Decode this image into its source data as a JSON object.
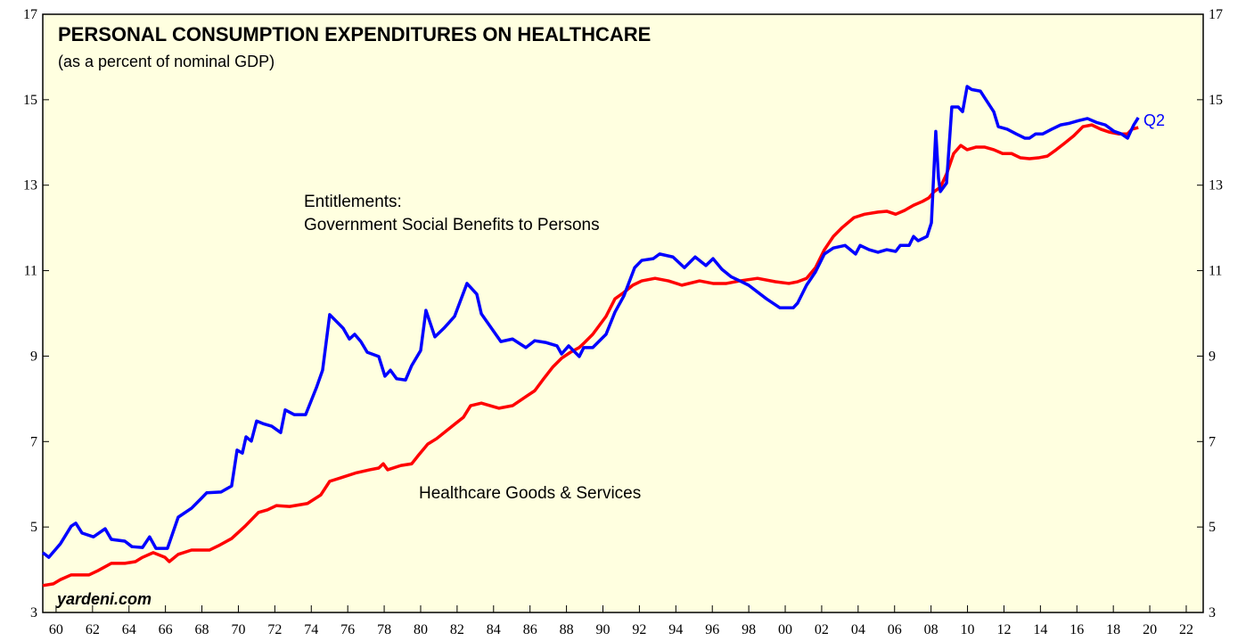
{
  "chart_data": {
    "type": "line",
    "title": "PERSONAL CONSUMPTION EXPENDITURES ON HEALTHCARE",
    "subtitle": "(as a percent of nominal GDP)",
    "annotations": {
      "entitlements": [
        "Entitlements:",
        "Government Social Benefits to Persons"
      ],
      "healthcare": "Healthcare Goods & Services",
      "end_label": "Q2",
      "source": "yardeni.com"
    },
    "xlim": [
      1959.27,
      2022.93
    ],
    "ylim": [
      3,
      17
    ],
    "yticks": [
      3,
      5,
      7,
      9,
      11,
      13,
      15,
      17
    ],
    "xticks": [
      {
        "value": 1960,
        "label": "60"
      },
      {
        "value": 1962,
        "label": "62"
      },
      {
        "value": 1964,
        "label": "64"
      },
      {
        "value": 1966,
        "label": "66"
      },
      {
        "value": 1968,
        "label": "68"
      },
      {
        "value": 1970,
        "label": "70"
      },
      {
        "value": 1972,
        "label": "72"
      },
      {
        "value": 1974,
        "label": "74"
      },
      {
        "value": 1976,
        "label": "76"
      },
      {
        "value": 1978,
        "label": "78"
      },
      {
        "value": 1980,
        "label": "80"
      },
      {
        "value": 1982,
        "label": "82"
      },
      {
        "value": 1984,
        "label": "84"
      },
      {
        "value": 1986,
        "label": "86"
      },
      {
        "value": 1988,
        "label": "88"
      },
      {
        "value": 1990,
        "label": "90"
      },
      {
        "value": 1992,
        "label": "92"
      },
      {
        "value": 1994,
        "label": "94"
      },
      {
        "value": 1996,
        "label": "96"
      },
      {
        "value": 1998,
        "label": "98"
      },
      {
        "value": 2000,
        "label": "00"
      },
      {
        "value": 2002,
        "label": "02"
      },
      {
        "value": 2004,
        "label": "04"
      },
      {
        "value": 2006,
        "label": "06"
      },
      {
        "value": 2008,
        "label": "08"
      },
      {
        "value": 2010,
        "label": "10"
      },
      {
        "value": 2012,
        "label": "12"
      },
      {
        "value": 2014,
        "label": "14"
      },
      {
        "value": 2016,
        "label": "16"
      },
      {
        "value": 2018,
        "label": "18"
      },
      {
        "value": 2020,
        "label": "20"
      },
      {
        "value": 2022,
        "label": "22"
      }
    ],
    "series": [
      {
        "color": "#ff0000",
        "x": [
          1959.27,
          1959.85,
          1960.24,
          1960.83,
          1961.81,
          1962.3,
          1963.03,
          1963.77,
          1964.35,
          1964.74,
          1965.33,
          1965.97,
          1966.21,
          1966.7,
          1967.43,
          1967.92,
          1968.41,
          1968.9,
          1969.63,
          1970.37,
          1971.1,
          1971.59,
          1972.08,
          1972.81,
          1973.79,
          1974.52,
          1975.01,
          1975.75,
          1976.48,
          1977.21,
          1977.7,
          1977.95,
          1978.19,
          1978.92,
          1979.51,
          1979.9,
          1980.39,
          1980.88,
          1981.61,
          1982.35,
          1982.74,
          1983.33,
          1984.3,
          1985.04,
          1985.77,
          1986.26,
          1986.75,
          1987.24,
          1987.73,
          1988.22,
          1988.7,
          1988.95,
          1989.44,
          1990.17,
          1990.66,
          1991.15,
          1991.64,
          1992.13,
          1992.86,
          1993.59,
          1994.33,
          1995.3,
          1996.04,
          1996.77,
          1997.51,
          1998.48,
          1999.46,
          2000.2,
          2000.68,
          2001.17,
          2001.66,
          2002.15,
          2002.64,
          2003.13,
          2003.77,
          2004.35,
          2005.09,
          2005.57,
          2006.06,
          2006.55,
          2007.04,
          2007.53,
          2007.87,
          2008.17,
          2008.51,
          2008.85,
          2009.24,
          2009.63,
          2009.98,
          2010.46,
          2010.95,
          2011.44,
          2011.93,
          2012.42,
          2012.91,
          2013.4,
          2013.89,
          2014.38,
          2014.87,
          2015.35,
          2015.84,
          2016.33,
          2016.82,
          2017.31,
          2017.8,
          2018.29,
          2018.78,
          2019.02,
          2019.37
        ],
        "values": [
          3.63,
          3.67,
          3.77,
          3.88,
          3.88,
          3.98,
          4.15,
          4.15,
          4.19,
          4.29,
          4.4,
          4.29,
          4.19,
          4.36,
          4.46,
          4.46,
          4.46,
          4.56,
          4.73,
          5.02,
          5.34,
          5.4,
          5.5,
          5.48,
          5.55,
          5.75,
          6.07,
          6.17,
          6.27,
          6.34,
          6.38,
          6.48,
          6.34,
          6.44,
          6.48,
          6.69,
          6.94,
          7.07,
          7.32,
          7.57,
          7.84,
          7.9,
          7.78,
          7.84,
          8.05,
          8.19,
          8.47,
          8.74,
          8.95,
          9.09,
          9.2,
          9.3,
          9.51,
          9.93,
          10.34,
          10.49,
          10.66,
          10.76,
          10.82,
          10.76,
          10.66,
          10.76,
          10.7,
          10.7,
          10.76,
          10.82,
          10.74,
          10.7,
          10.74,
          10.82,
          11.07,
          11.49,
          11.8,
          12.01,
          12.24,
          12.32,
          12.37,
          12.39,
          12.32,
          12.41,
          12.53,
          12.62,
          12.7,
          12.85,
          12.95,
          13.26,
          13.74,
          13.93,
          13.83,
          13.89,
          13.89,
          13.83,
          13.74,
          13.74,
          13.64,
          13.62,
          13.64,
          13.68,
          13.83,
          13.99,
          14.16,
          14.37,
          14.41,
          14.31,
          14.24,
          14.2,
          14.2,
          14.31,
          14.35
        ]
      },
      {
        "color": "#0000ff",
        "x": [
          1959.27,
          1959.6,
          1960.24,
          1960.83,
          1961.08,
          1961.42,
          1962.05,
          1962.69,
          1963.03,
          1963.77,
          1964.16,
          1964.74,
          1965.13,
          1965.48,
          1966.11,
          1966.7,
          1967.43,
          1967.92,
          1968.26,
          1969.05,
          1969.63,
          1969.93,
          1970.22,
          1970.42,
          1970.71,
          1971.0,
          1971.35,
          1971.83,
          1972.32,
          1972.57,
          1973.06,
          1973.69,
          1974.28,
          1974.62,
          1975.01,
          1975.75,
          1976.09,
          1976.38,
          1976.72,
          1977.07,
          1977.7,
          1978.04,
          1978.34,
          1978.68,
          1979.17,
          1979.51,
          1980.0,
          1980.29,
          1980.78,
          1981.27,
          1981.86,
          1982.54,
          1983.08,
          1983.33,
          1984.4,
          1985.04,
          1985.77,
          1986.26,
          1986.85,
          1987.48,
          1987.73,
          1988.12,
          1988.7,
          1988.95,
          1989.44,
          1990.17,
          1990.66,
          1991.15,
          1991.74,
          1992.13,
          1992.76,
          1993.11,
          1993.84,
          1994.47,
          1995.06,
          1995.65,
          1996.04,
          1996.53,
          1997.02,
          1997.51,
          1997.99,
          1998.97,
          1999.71,
          2000.44,
          2000.68,
          2001.17,
          2001.66,
          2002.15,
          2002.64,
          2003.28,
          2003.86,
          2004.11,
          2004.6,
          2005.09,
          2005.57,
          2006.06,
          2006.31,
          2006.8,
          2007.04,
          2007.29,
          2007.78,
          2008.02,
          2008.26,
          2008.41,
          2008.51,
          2008.85,
          2009.14,
          2009.49,
          2009.73,
          2009.98,
          2010.22,
          2010.71,
          2010.95,
          2011.44,
          2011.69,
          2012.18,
          2012.67,
          2013.15,
          2013.4,
          2013.74,
          2014.13,
          2014.62,
          2015.11,
          2015.6,
          2016.09,
          2016.58,
          2017.07,
          2017.56,
          2018.04,
          2018.44,
          2018.78,
          2019.12,
          2019.37
        ],
        "values": [
          4.4,
          4.29,
          4.61,
          5.02,
          5.09,
          4.86,
          4.77,
          4.96,
          4.71,
          4.67,
          4.54,
          4.52,
          4.77,
          4.5,
          4.5,
          5.23,
          5.44,
          5.65,
          5.8,
          5.82,
          5.96,
          6.8,
          6.73,
          7.11,
          7.01,
          7.48,
          7.42,
          7.36,
          7.21,
          7.74,
          7.63,
          7.63,
          8.26,
          8.67,
          9.97,
          9.65,
          9.4,
          9.51,
          9.34,
          9.09,
          8.99,
          8.53,
          8.67,
          8.47,
          8.44,
          8.78,
          9.13,
          10.07,
          9.45,
          9.65,
          9.93,
          10.7,
          10.45,
          9.99,
          9.34,
          9.4,
          9.2,
          9.36,
          9.32,
          9.24,
          9.05,
          9.24,
          8.99,
          9.2,
          9.2,
          9.51,
          10.03,
          10.41,
          11.07,
          11.24,
          11.28,
          11.39,
          11.32,
          11.07,
          11.32,
          11.12,
          11.28,
          11.03,
          10.86,
          10.76,
          10.66,
          10.34,
          10.13,
          10.13,
          10.24,
          10.66,
          10.97,
          11.39,
          11.53,
          11.59,
          11.39,
          11.59,
          11.49,
          11.43,
          11.49,
          11.45,
          11.59,
          11.59,
          11.8,
          11.7,
          11.8,
          12.12,
          14.26,
          13.16,
          12.85,
          13.05,
          14.83,
          14.83,
          14.72,
          15.31,
          15.24,
          15.2,
          15.04,
          14.72,
          14.37,
          14.31,
          14.2,
          14.1,
          14.1,
          14.2,
          14.2,
          14.31,
          14.41,
          14.45,
          14.51,
          14.56,
          14.47,
          14.41,
          14.26,
          14.2,
          14.1,
          14.41,
          14.58
        ]
      }
    ]
  }
}
